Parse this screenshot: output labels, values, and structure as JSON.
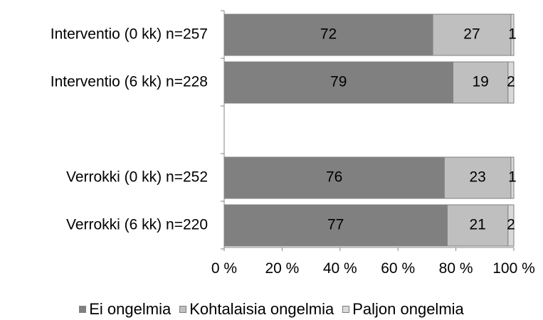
{
  "chart_data": {
    "type": "bar",
    "orientation": "horizontal",
    "stacked": true,
    "categories": [
      "Interventio (0 kk) n=257",
      "Interventio (6 kk) n=228",
      "",
      "Verrokki (0 kk) n=252",
      "Verrokki (6 kk) n=220"
    ],
    "series": [
      {
        "name": "Ei ongelmia",
        "color": "#808080",
        "values": [
          72,
          79,
          null,
          76,
          77
        ]
      },
      {
        "name": "Kohtalaisia ongelmia",
        "color": "#bfbfbf",
        "values": [
          27,
          19,
          null,
          23,
          21
        ]
      },
      {
        "name": "Paljon ongelmia",
        "color": "#d9d9d9",
        "values": [
          1,
          2,
          null,
          1,
          2
        ]
      }
    ],
    "xlim": [
      0,
      100
    ],
    "xticks": [
      0,
      20,
      40,
      60,
      80,
      100
    ],
    "xtick_labels": [
      "0 %",
      "20 %",
      "40 %",
      "60 %",
      "80 %",
      "100 %"
    ],
    "data_labels": true,
    "grid": false,
    "legend_position": "bottom"
  },
  "legend": {
    "items": [
      {
        "label": "Ei ongelmia",
        "color": "#808080"
      },
      {
        "label": "Kohtalaisia ongelmia",
        "color": "#bfbfbf"
      },
      {
        "label": "Paljon ongelmia",
        "color": "#d9d9d9"
      }
    ]
  }
}
